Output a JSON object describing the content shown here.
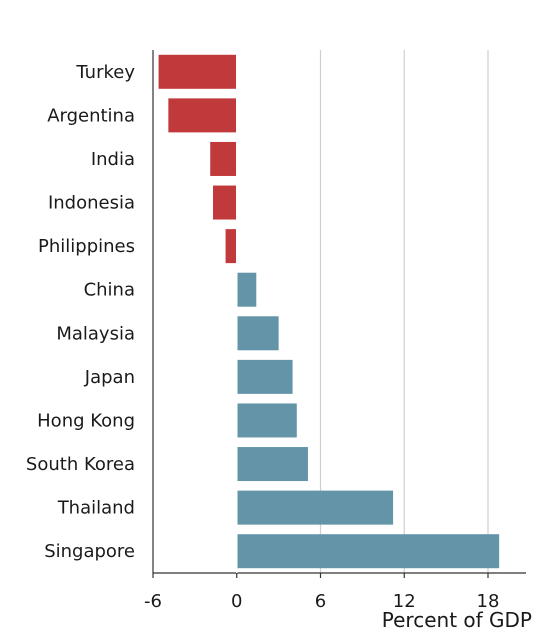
{
  "chart_data": {
    "type": "bar",
    "orientation": "horizontal",
    "categories": [
      "Turkey",
      "Argentina",
      "India",
      "Indonesia",
      "Philippines",
      "China",
      "Malaysia",
      "Japan",
      "Hong Kong",
      "South Korea",
      "Thailand",
      "Singapore"
    ],
    "values": [
      -5.6,
      -4.9,
      -1.9,
      -1.7,
      -0.8,
      1.4,
      3.0,
      4.0,
      4.3,
      5.1,
      11.2,
      18.8
    ],
    "xlabel": "Percent of GDP",
    "ylabel": "",
    "xlim": [
      -6,
      21
    ],
    "xticks": [
      -6,
      0,
      6,
      12,
      18
    ],
    "xtick_labels": [
      "-6",
      "0",
      "6",
      "12",
      "18"
    ],
    "grid": "vertical",
    "colors": {
      "negative": "#c0393b",
      "positive": "#6394a8",
      "grid": "#cfcfcf",
      "axis": "#333333"
    }
  }
}
